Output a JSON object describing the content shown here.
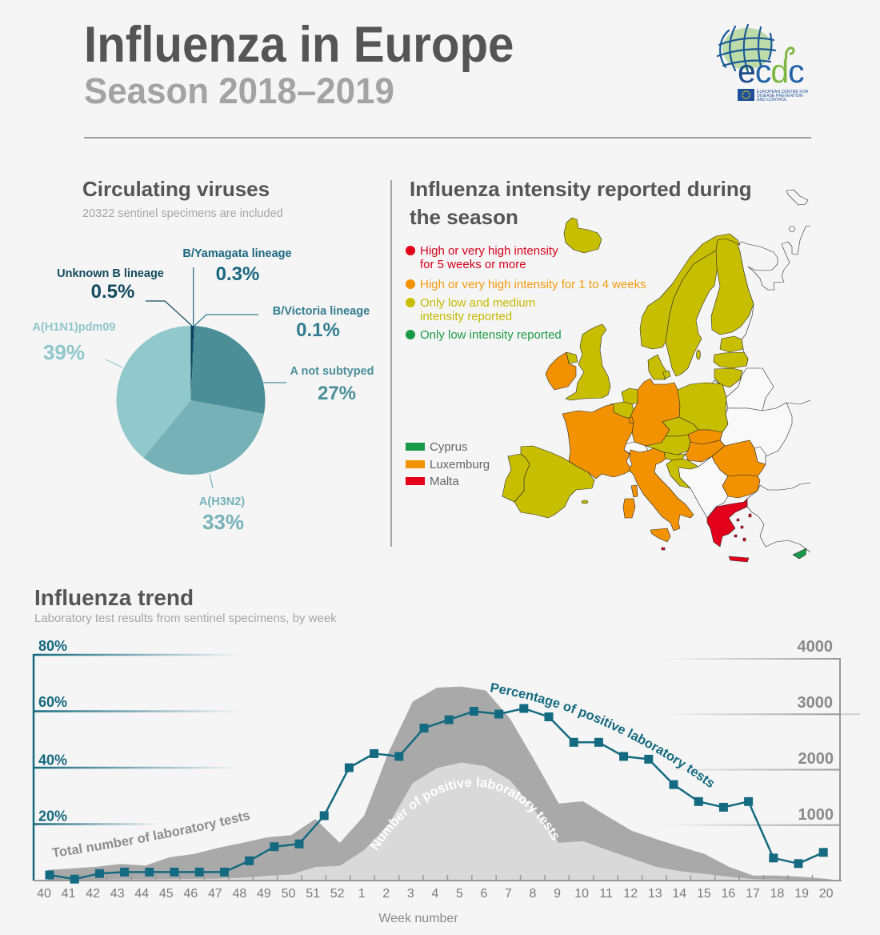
{
  "header": {
    "title": "Influenza in Europe",
    "subtitle": "Season 2018–2019",
    "title_color": "#555555",
    "subtitle_color": "#a3a3a3"
  },
  "logo": {
    "letters": [
      "e",
      "c",
      "d",
      "c"
    ],
    "org_lines": [
      "EUROPEAN CENTRE FOR",
      "DISEASE PREVENTION",
      "AND CONTROL"
    ]
  },
  "viruses": {
    "title": "Circulating viruses",
    "subtitle": "20322 sentinel specimens are included",
    "labels": {
      "unknown_b": {
        "name": "Unknown B lineage",
        "pct": "0.5%",
        "color": "#134a5f"
      },
      "b_yamagata": {
        "name": "B/Yamagata lineage",
        "pct": "0.3%",
        "color": "#1b6680"
      },
      "b_victoria": {
        "name": "B/Victoria lineage",
        "pct": "0.1%",
        "color": "#327c8f"
      },
      "a_not_subtyped": {
        "name": "A not subtyped",
        "pct": "27%",
        "color": "#4b8f99"
      },
      "a_h3n2": {
        "name": "A(H3N2)",
        "pct": "33%",
        "color": "#76b2b8"
      },
      "a_h1n1": {
        "name": "A(H1N1)pdm09",
        "pct": "39%",
        "color": "#8fc7ca"
      }
    }
  },
  "intensity": {
    "title_line1": "Influenza intensity reported during",
    "title_line2": "the season",
    "legend": [
      {
        "key": "high_5plus",
        "line1": "High or very high intensity",
        "line2": "for 5 weeks or more",
        "color": "#e2001a",
        "text_color": "#d6001c"
      },
      {
        "key": "high_1to4",
        "line1": "High or very high intensity for 1 to 4 weeks",
        "line2": "",
        "color": "#f39200",
        "text_color": "#f39a10"
      },
      {
        "key": "low_medium",
        "line1": "Only low and medium",
        "line2": "intensity reported",
        "color": "#c8be00",
        "text_color": "#c4b900"
      },
      {
        "key": "low",
        "line1": "Only low intensity reported",
        "line2": "",
        "color": "#1a9a48",
        "text_color": "#1d9a47"
      }
    ],
    "small_countries": [
      {
        "name": "Cyprus",
        "key": "low"
      },
      {
        "name": "Luxemburg",
        "key": "high_1to4"
      },
      {
        "name": "Malta",
        "key": "high_5plus"
      }
    ],
    "countries": {
      "iceland": "low_medium",
      "norway": "low_medium",
      "sweden": "low_medium",
      "finland": "low_medium",
      "estonia": "low_medium",
      "latvia": "low_medium",
      "lithuania": "low_medium",
      "denmark": "low_medium",
      "united_kingdom": "low_medium",
      "ireland": "high_1to4",
      "netherlands": "low_medium",
      "belgium": "low_medium",
      "luxembourg": "high_1to4",
      "germany": "high_1to4",
      "poland": "low_medium",
      "czechia": "low_medium",
      "slovakia": "high_1to4",
      "austria": "low_medium",
      "hungary": "high_1to4",
      "slovenia": "low_medium",
      "croatia": "low_medium",
      "romania": "high_1to4",
      "bulgaria": "high_1to4",
      "france": "high_1to4",
      "spain": "low_medium",
      "portugal": "low_medium",
      "italy": "high_1to4",
      "greece": "high_5plus",
      "cyprus": "low",
      "malta": "high_5plus"
    },
    "no_data_color": "#f9f9f9"
  },
  "trend": {
    "title": "Influenza trend",
    "subtitle": "Laboratory test results from sentinel specimens, by week",
    "left_axis_ticks": [
      "80%",
      "60%",
      "40%",
      "20%"
    ],
    "right_axis_ticks": [
      "4000",
      "3000",
      "2000",
      "1000"
    ],
    "xlabel": "Week number",
    "annotation_total": "Total number of laboratory tests",
    "annotation_positive": "Number of positive laboratory tests",
    "annotation_percentage": "Percentage of positive laboratory tests",
    "teal": "#15697f"
  },
  "chart_data": [
    {
      "type": "pie",
      "title": "Circulating viruses",
      "subtitle": "20322 sentinel specimens are included",
      "categories": [
        "Unknown B lineage",
        "B/Yamagata lineage",
        "B/Victoria lineage",
        "A not subtyped",
        "A(H3N2)",
        "A(H1N1)pdm09"
      ],
      "values": [
        0.5,
        0.3,
        0.1,
        27,
        33,
        39
      ],
      "unit": "%",
      "colors": [
        "#0a3a54",
        "#0d4f6b",
        "#2c7a90",
        "#4b8e98",
        "#75b1b6",
        "#90c8cb"
      ]
    },
    {
      "type": "area+line",
      "title": "Influenza trend",
      "subtitle": "Laboratory test results from sentinel specimens, by week",
      "xlabel": "Week number",
      "ylabel_left": "Percentage of positive laboratory tests",
      "ylabel_right": "Number of laboratory tests",
      "categories": [
        "40",
        "41",
        "42",
        "43",
        "44",
        "45",
        "46",
        "47",
        "48",
        "49",
        "50",
        "51",
        "52",
        "1",
        "2",
        "3",
        "4",
        "5",
        "6",
        "7",
        "8",
        "9",
        "10",
        "11",
        "12",
        "13",
        "14",
        "15",
        "16",
        "17",
        "18",
        "19",
        "20"
      ],
      "ylim_left": [
        0,
        80
      ],
      "ylim_right": [
        0,
        4000
      ],
      "yticks_left": [
        20,
        40,
        60,
        80
      ],
      "yticks_right": [
        1000,
        2000,
        3000,
        4000
      ],
      "grid": true,
      "legend": "inline curved annotations",
      "series": [
        {
          "name": "Total number of laboratory tests",
          "type": "area",
          "axis": "right",
          "color": "#a9a9a9",
          "values": [
            190,
            220,
            250,
            300,
            270,
            420,
            480,
            590,
            680,
            780,
            820,
            1110,
            680,
            1170,
            2310,
            3230,
            3480,
            3500,
            3430,
            2920,
            2170,
            1390,
            1430,
            1160,
            900,
            750,
            610,
            480,
            250,
            90,
            90,
            70,
            30
          ]
        },
        {
          "name": "Number of positive laboratory tests",
          "type": "area",
          "axis": "right",
          "color": "#d9d9d9",
          "values": [
            10,
            10,
            15,
            20,
            20,
            25,
            30,
            35,
            50,
            85,
            110,
            245,
            265,
            550,
            1010,
            1760,
            2030,
            2130,
            2060,
            1810,
            1280,
            680,
            710,
            550,
            400,
            250,
            170,
            120,
            70,
            25,
            20,
            15,
            10
          ]
        },
        {
          "name": "Percentage of positive laboratory tests",
          "type": "line",
          "axis": "left",
          "color": "#146a80",
          "marker": "square",
          "values": [
            2,
            0.5,
            2.5,
            3,
            3,
            3,
            3,
            3,
            7,
            12,
            13,
            23,
            40,
            45,
            44,
            54,
            57,
            60,
            59,
            61,
            58,
            49,
            49,
            44,
            43,
            34,
            28,
            26,
            28,
            8,
            6,
            10,
            null
          ]
        }
      ]
    }
  ]
}
